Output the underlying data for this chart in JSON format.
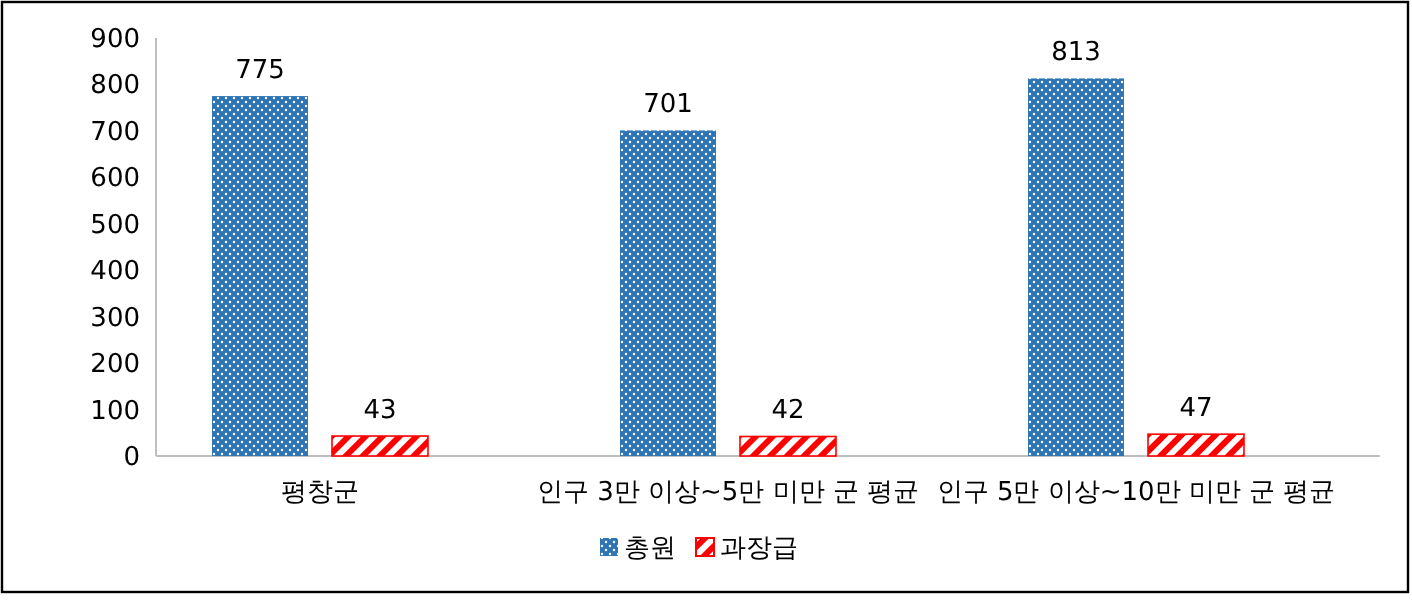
{
  "chart_data": {
    "type": "bar",
    "categories": [
      "평창군",
      "인구 3만 이상~5만 미만 군 평균",
      "인구 5만 이상~10만 미만 군 평균"
    ],
    "series": [
      {
        "name": "총원",
        "color": "#2e75b6",
        "values": [
          775,
          701,
          813
        ]
      },
      {
        "name": "과장급",
        "color": "#ff0000",
        "values": [
          43,
          42,
          47
        ]
      }
    ],
    "ylim": [
      0,
      900
    ],
    "yticks": [
      0,
      100,
      200,
      300,
      400,
      500,
      600,
      700,
      800,
      900
    ],
    "data_labels": true,
    "legend": "bottom",
    "grid": false
  }
}
